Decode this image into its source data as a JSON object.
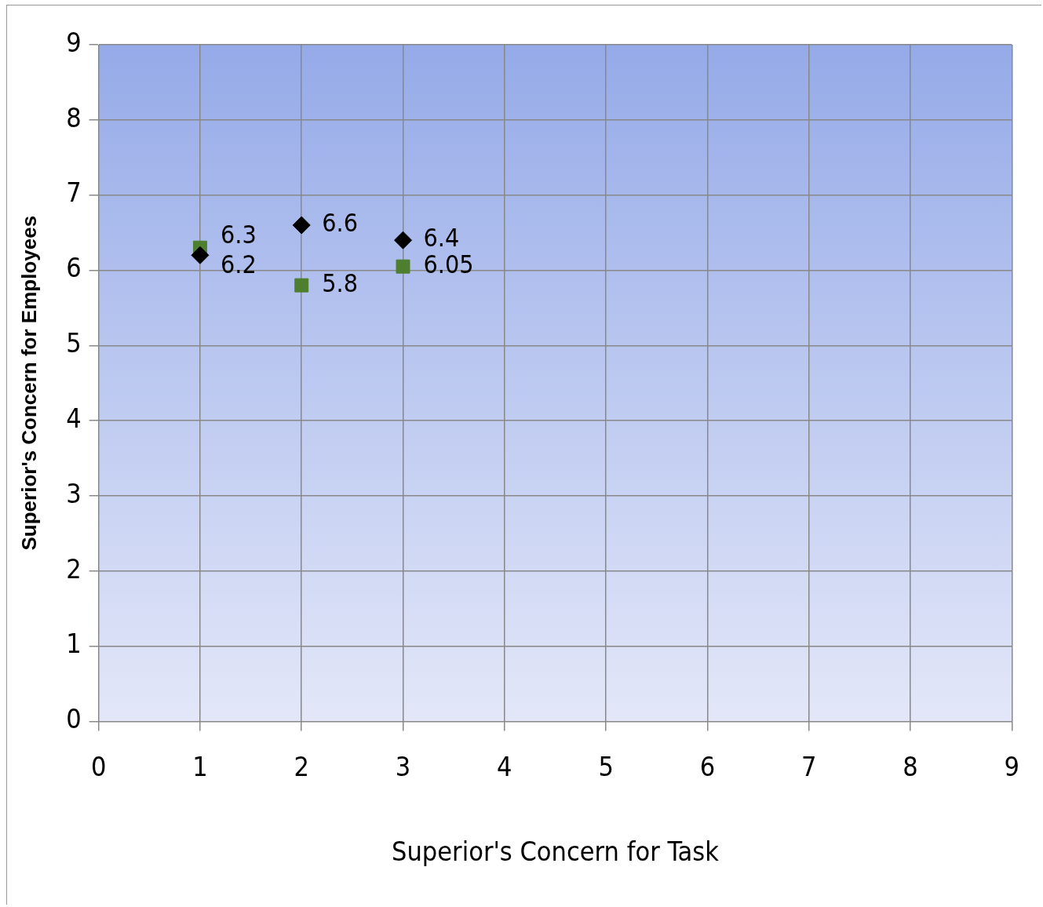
{
  "chart_data": {
    "type": "scatter",
    "xlabel": "Superior's Concern for Task",
    "ylabel": "Superior's Concern for Employees",
    "x": [
      1,
      2,
      3
    ],
    "series": [
      {
        "color": "#000000",
        "marker": "diamond",
        "values": [
          6.2,
          6.6,
          6.4
        ]
      },
      {
        "color": "#4e7f2e",
        "marker": "square",
        "values": [
          6.3,
          5.8,
          6.05
        ]
      }
    ],
    "xlim": [
      0,
      9
    ],
    "xticks": [
      0,
      1,
      2,
      3,
      4,
      5,
      6,
      7,
      8,
      9
    ],
    "ylim": [
      0,
      9
    ],
    "yticks": [
      0,
      1,
      2,
      3,
      4,
      5,
      6,
      7,
      8,
      9
    ],
    "grid": true,
    "data_labels": true
  }
}
